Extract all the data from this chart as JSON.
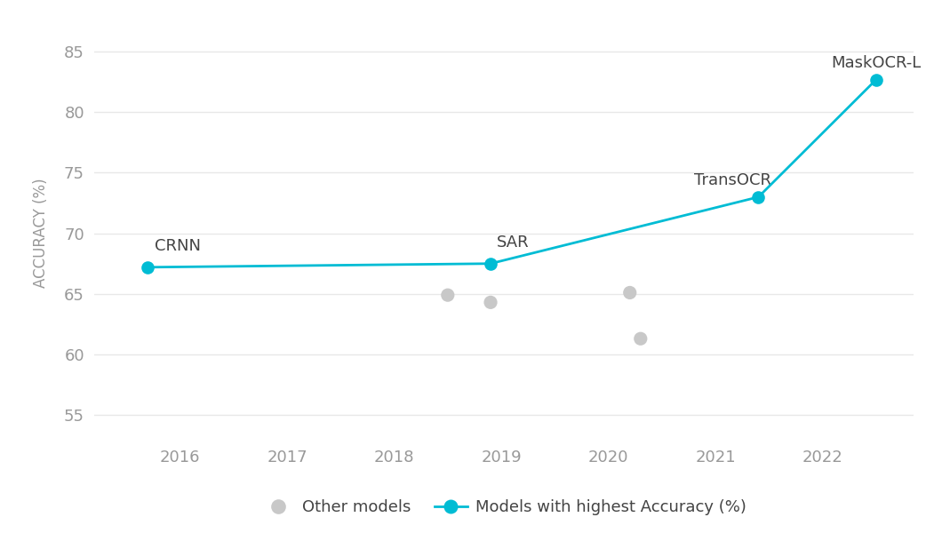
{
  "ylabel": "ACCURACY (%)",
  "ylim": [
    53,
    87
  ],
  "yticks": [
    55,
    60,
    65,
    70,
    75,
    80,
    85
  ],
  "xlim": [
    2015.2,
    2022.85
  ],
  "xticks": [
    2016,
    2017,
    2018,
    2019,
    2020,
    2021,
    2022
  ],
  "main_line_x": [
    2015.7,
    2018.9,
    2021.4,
    2022.5
  ],
  "main_line_y": [
    67.2,
    67.5,
    73.0,
    82.7
  ],
  "main_line_color": "#00BCD4",
  "main_line_labels": [
    "CRNN",
    "SAR",
    "TransOCR",
    "MaskOCR-L"
  ],
  "other_points_x": [
    2018.5,
    2018.9,
    2020.2,
    2020.3
  ],
  "other_points_y": [
    64.9,
    64.3,
    65.1,
    61.3
  ],
  "other_color": "#C8C8C8",
  "background_color": "#ffffff",
  "grid_color": "#e8e8e8",
  "tick_color": "#999999",
  "label_color": "#444444",
  "marker_size": 9,
  "scatter_size": 120,
  "line_width": 2.0
}
